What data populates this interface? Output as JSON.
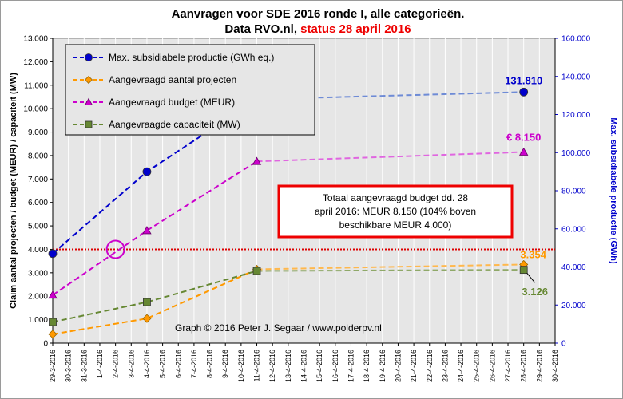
{
  "title": {
    "line1": "Aanvragen voor SDE 2016 ronde I, alle categorieën.",
    "line2_a": "Data RVO.nl, ",
    "line2_b": "status 28 april 2016"
  },
  "credit": "Graph  © 2016 Peter J. Segaar / www.polderpv.nl",
  "note_box": {
    "lines": [
      "Totaal aangevraagd budget dd. 28",
      "april 2016: MEUR 8.150 (104% boven",
      "beschikbare MEUR 4.000)"
    ]
  },
  "colors": {
    "productie": "#0000CC",
    "projecten": "#FF9900",
    "budget": "#CC00CC",
    "capaciteit": "#668833",
    "reference_line": "#DD0000",
    "plot_bg": "#E6E6E6",
    "grid": "#FFFFFF",
    "title_red": "#EE0000"
  },
  "chart_data": {
    "type": "line",
    "x": [
      "29-3-2016",
      "30-3-2016",
      "31-3-2016",
      "1-4-2016",
      "2-4-2016",
      "3-4-2016",
      "4-4-2016",
      "5-4-2016",
      "6-4-2016",
      "7-4-2016",
      "8-4-2016",
      "9-4-2016",
      "10-4-2016",
      "11-4-2016",
      "12-4-2016",
      "13-4-2016",
      "14-4-2016",
      "15-4-2016",
      "16-4-2016",
      "17-4-2016",
      "18-4-2016",
      "19-4-2016",
      "20-4-2016",
      "21-4-2016",
      "22-4-2016",
      "23-4-2016",
      "24-4-2016",
      "25-4-2016",
      "26-4-2016",
      "27-4-2016",
      "28-4-2016",
      "29-4-2016",
      "30-4-2016"
    ],
    "y_left": {
      "label": "Claim aantal projecten / budget (MEUR) / capaciteit (MW)",
      "lim": [
        0,
        13000
      ],
      "ticks": [
        "0",
        "1.000",
        "2.000",
        "3.000",
        "4.000",
        "5.000",
        "6.000",
        "7.000",
        "8.000",
        "9.000",
        "10.000",
        "11.000",
        "12.000",
        "13.000"
      ]
    },
    "y_right": {
      "label": "Max. subsidiabele productie (GWh)",
      "lim": [
        0,
        160000
      ],
      "ticks": [
        "0",
        "20.000",
        "40.000",
        "60.000",
        "80.000",
        "100.000",
        "120.000",
        "140.000",
        "160.000"
      ]
    },
    "grid": "vertical",
    "legend_position": "top-left",
    "series": [
      {
        "key": "productie",
        "name": "Max. subsidiabele productie (GWh eq.)",
        "axis": "right",
        "marker": "circle",
        "points": [
          [
            "29-3-2016",
            47000
          ],
          [
            "4-4-2016",
            90000
          ],
          [
            "11-4-2016",
            128000
          ]
        ],
        "continuation": [
          [
            "11-4-2016",
            128000
          ],
          [
            "28-4-2016",
            131810
          ]
        ],
        "end_label": "131.810"
      },
      {
        "key": "projecten",
        "name": "Aangevraagd aantal projecten",
        "axis": "left",
        "marker": "diamond",
        "points": [
          [
            "29-3-2016",
            380
          ],
          [
            "4-4-2016",
            1050
          ],
          [
            "11-4-2016",
            3150
          ]
        ],
        "continuation": [
          [
            "11-4-2016",
            3150
          ],
          [
            "28-4-2016",
            3354
          ]
        ],
        "end_label": "3.354"
      },
      {
        "key": "budget",
        "name": "Aangevraagd budget (MEUR)",
        "axis": "left",
        "marker": "triangle",
        "points": [
          [
            "29-3-2016",
            2050
          ],
          [
            "4-4-2016",
            4800
          ],
          [
            "11-4-2016",
            7750
          ]
        ],
        "continuation": [
          [
            "11-4-2016",
            7750
          ],
          [
            "28-4-2016",
            8150
          ]
        ],
        "end_label": "€ 8.150"
      },
      {
        "key": "capaciteit",
        "name": "Aangevraagde capaciteit (MW)",
        "axis": "left",
        "marker": "square",
        "points": [
          [
            "29-3-2016",
            900
          ],
          [
            "4-4-2016",
            1750
          ],
          [
            "11-4-2016",
            3080
          ]
        ],
        "continuation": [
          [
            "11-4-2016",
            3080
          ],
          [
            "28-4-2016",
            3126
          ]
        ],
        "end_label": "3.126"
      }
    ],
    "reference_line": {
      "axis": "left",
      "value": 4000
    },
    "highlight": {
      "x": "2-4-2016",
      "y": 4000,
      "axis": "left",
      "shape": "circle"
    }
  }
}
